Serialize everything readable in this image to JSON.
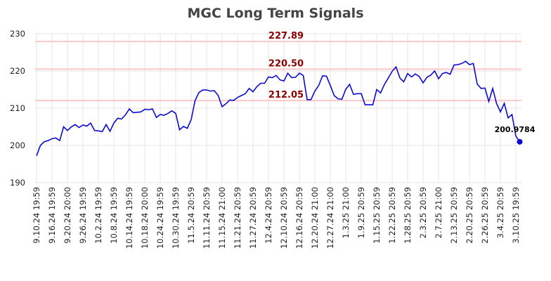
{
  "chart_data": {
    "type": "line",
    "title": "MGC Long Term Signals",
    "categories": [
      "9.10.24 19:59",
      null,
      null,
      null,
      "9.16.24 19:59",
      null,
      null,
      null,
      "9.20.24 20:00",
      null,
      null,
      null,
      "9.26.24 19:59",
      null,
      null,
      null,
      "10.2.24 19:59",
      null,
      null,
      null,
      "10.8.24 19:59",
      null,
      null,
      null,
      "10.14.24 19:59",
      null,
      null,
      null,
      "10.18.24 20:00",
      null,
      null,
      null,
      "10.24.24 19:59",
      null,
      null,
      null,
      "10.30.24 19:59",
      null,
      null,
      null,
      "11.5.24 20:59",
      null,
      null,
      null,
      "11.11.24 20:59",
      null,
      null,
      null,
      "11.15.24 21:00",
      null,
      null,
      null,
      "11.21.24 20:59",
      null,
      null,
      null,
      "11.27.24 20:59",
      null,
      null,
      null,
      "12.4.24 20:59",
      null,
      null,
      null,
      "12.10.24 20:59",
      null,
      null,
      null,
      "12.16.24 20:59",
      null,
      null,
      null,
      "12.20.24 21:00",
      null,
      null,
      null,
      "12.27.24 21:00",
      null,
      null,
      null,
      "1.3.25 21:00",
      null,
      null,
      null,
      "1.9.25 20:59",
      null,
      null,
      null,
      "1.15.25 20:59",
      null,
      null,
      null,
      "1.22.25 20:59",
      null,
      null,
      null,
      "1.28.25 20:59",
      null,
      null,
      null,
      "2.3.25 20:59",
      null,
      null,
      null,
      "2.7.25 21:00",
      null,
      null,
      null,
      "2.13.25 20:59",
      null,
      null,
      null,
      "2.20.25 20:59",
      null,
      null,
      null,
      "2.26.25 20:59",
      null,
      null,
      null,
      "3.4.25 20:59",
      null,
      null,
      null,
      "3.10.25 19:59",
      null
    ],
    "series": [
      {
        "name": "MGC",
        "color": "#0b0bd0",
        "values": [
          197.2,
          200,
          201,
          201.3,
          201.8,
          202,
          201.3,
          205,
          204,
          205,
          205.6,
          204.8,
          205.5,
          205.2,
          206,
          204,
          203.9,
          203.7,
          205.6,
          203.8,
          206,
          207.3,
          207.1,
          208.2,
          209.8,
          208.8,
          208.9,
          209,
          209.7,
          209.6,
          209.8,
          207.5,
          208.3,
          208.1,
          208.6,
          209.3,
          208.6,
          204.2,
          205.1,
          204.6,
          206.9,
          212,
          214.2,
          214.9,
          214.9,
          214.6,
          214.7,
          213.4,
          210.4,
          211.2,
          212.2,
          212.1,
          212.9,
          213.4,
          213.9,
          215.3,
          214.4,
          215.8,
          216.7,
          216.7,
          218.4,
          218.2,
          218.8,
          217.6,
          217.3,
          219.4,
          218.2,
          218.3,
          219.4,
          218.8,
          212.3,
          212.3,
          214.6,
          216.1,
          218.7,
          218.6,
          216.1,
          213.4,
          212.5,
          212.4,
          215.1,
          216.4,
          213.7,
          213.9,
          213.9,
          210.9,
          210.9,
          210.9,
          215,
          214.1,
          216.4,
          218.1,
          219.9,
          221.1,
          218.1,
          217.1,
          219.3,
          218.4,
          219.2,
          218.5,
          216.8,
          218.3,
          218.9,
          220,
          217.9,
          219.3,
          219.6,
          219.1,
          221.6,
          221.7,
          222,
          222.6,
          221.7,
          222,
          216.5,
          215.3,
          215.4,
          211.8,
          215.3,
          211.3,
          209,
          211.3,
          207.4,
          208.3,
          202.5,
          200.9784
        ]
      }
    ],
    "ylim": [
      190,
      230
    ],
    "yticks": [
      190,
      200,
      210,
      220,
      230
    ],
    "grid": true,
    "levels": [
      227.89,
      220.5,
      212.05
    ],
    "level_labels": [
      "227.89",
      "220.50",
      "212.05"
    ],
    "level_color": "#ffc8c8",
    "level_label_color": "#8b0000"
  }
}
